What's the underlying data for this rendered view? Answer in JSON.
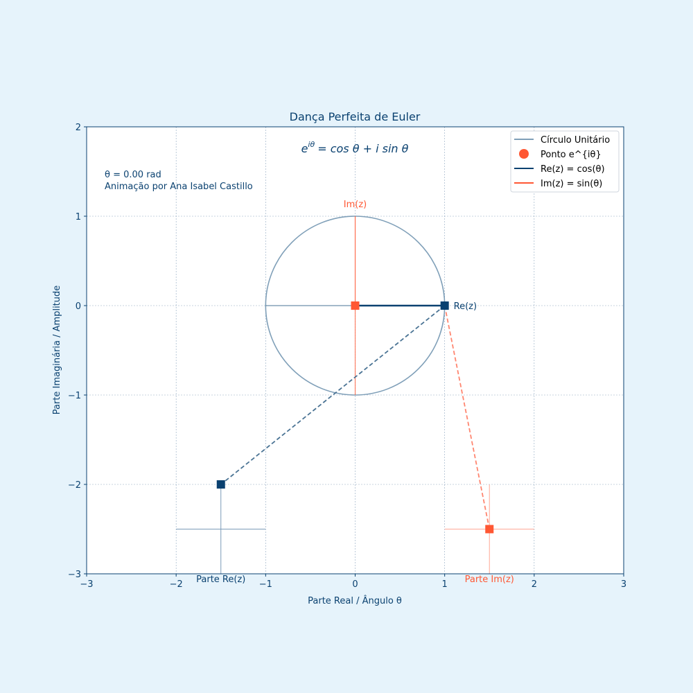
{
  "chart_data": {
    "type": "line",
    "title": "Dança Perfeita de Euler",
    "formula": "e^{iθ} = cos θ + i sin θ",
    "formula_parts": {
      "base": "e",
      "exponent": "iθ",
      "rest": "= cos θ + i sin θ"
    },
    "xlabel": "Parte Real / Ângulo θ",
    "ylabel": "Parte Imaginária / Amplitude",
    "xlim": [
      -3,
      3
    ],
    "ylim": [
      -3,
      2
    ],
    "xticks": [
      -3,
      -2,
      -1,
      0,
      1,
      2,
      3
    ],
    "yticks": [
      -3,
      -2,
      -1,
      0,
      1,
      2
    ],
    "grid": true,
    "legend_position": "top-right",
    "annotations": {
      "theta": "θ = 0.00 rad",
      "credit": "Animação por Ana Isabel Castillo",
      "im_axis": "Im(z)",
      "re_point": "Re(z)",
      "re_part": "Parte Re(z)",
      "im_part": "Parte Im(z)"
    },
    "series": [
      {
        "name": "Círculo Unitário",
        "kind": "circle",
        "center": [
          0,
          0
        ],
        "radius": 1,
        "color": "#7f9fb8"
      },
      {
        "name": "Ponto e^{iθ}",
        "kind": "point",
        "x": [
          0
        ],
        "y": [
          0
        ],
        "color": "#ff5733"
      },
      {
        "name": "Re(z) = cos(θ)",
        "kind": "line",
        "x": [
          0,
          1
        ],
        "y": [
          0,
          0
        ],
        "color": "#0a4170"
      },
      {
        "name": "Im(z) = sin(θ)",
        "kind": "line",
        "x": [
          0,
          0
        ],
        "y": [
          -1,
          1
        ],
        "color": "#ff5733"
      }
    ],
    "markers": [
      {
        "role": "circle-point",
        "x": 1,
        "y": 0,
        "color": "#0a4170"
      },
      {
        "role": "real-projection",
        "x": -1.5,
        "y": -2,
        "color": "#0a4170"
      },
      {
        "role": "imag-projection",
        "x": 1.5,
        "y": -2.5,
        "color": "#ff5733"
      }
    ],
    "dashed_links": [
      {
        "from": [
          1,
          0
        ],
        "to": [
          -1.5,
          -2
        ],
        "color": "#4a7394"
      },
      {
        "from": [
          1,
          0
        ],
        "to": [
          1.5,
          -2.5
        ],
        "color": "#ff8670"
      }
    ],
    "axis_guides": [
      {
        "from": [
          -1,
          0
        ],
        "to": [
          1,
          0
        ],
        "color": "#4a7394"
      },
      {
        "from": [
          0,
          0
        ],
        "to": [
          0,
          1
        ],
        "color": "#ff6e50"
      }
    ],
    "crosshairs": [
      {
        "center": [
          -1.5,
          -2.5
        ],
        "x_range": [
          -2,
          -1
        ],
        "y_range": [
          -3,
          -2
        ],
        "color": "#7a9ab8"
      },
      {
        "center": [
          1.5,
          -2.5
        ],
        "x_range": [
          1,
          2
        ],
        "y_range": [
          -3,
          -2
        ],
        "color": "#ffa896"
      }
    ],
    "colors": {
      "primary": "#0a4170",
      "accent": "#ff5733",
      "background": "#e6f3fb",
      "grid": "#8fa8c0"
    }
  }
}
